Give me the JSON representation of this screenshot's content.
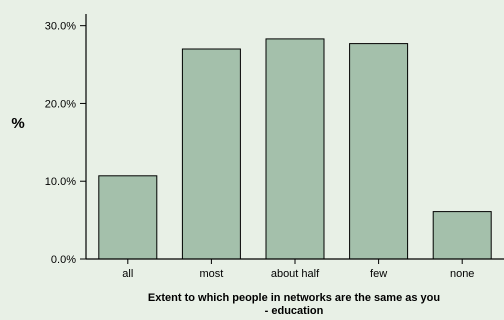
{
  "chart_data": {
    "type": "bar",
    "title": "",
    "xlabel": "Extent to which people in networks are the same as you - education",
    "xlabel_lines": [
      "Extent to which people in networks are the same as you",
      "- education"
    ],
    "ylabel": "%",
    "categories": [
      "all",
      "most",
      "about half",
      "few",
      "none"
    ],
    "values": [
      10.7,
      27.0,
      28.3,
      27.7,
      6.1
    ],
    "ylim": [
      0,
      31.5
    ],
    "yticks": [
      0,
      10,
      20,
      30
    ],
    "ytick_labels": [
      "0.0%",
      "10.0%",
      "20.0%",
      "30.0%"
    ],
    "grid": false,
    "colors": {
      "background": "#e8f0e6",
      "bar_fill": "#a4c0ab",
      "bar_stroke": "#000000"
    }
  }
}
